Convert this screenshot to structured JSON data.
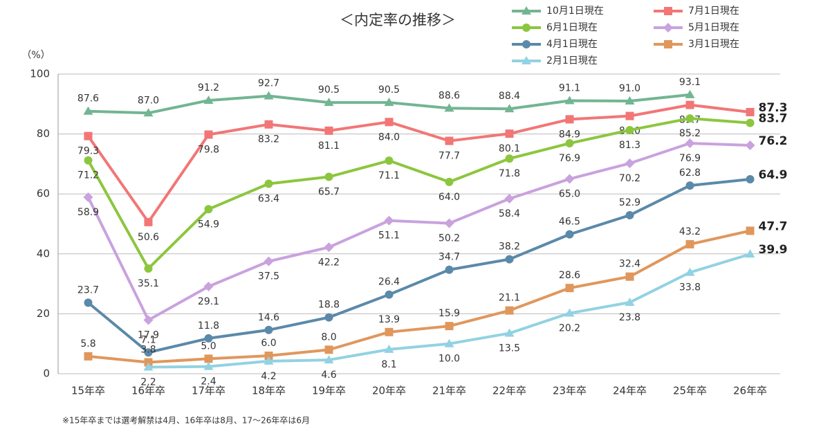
{
  "chart_data": {
    "type": "line",
    "title": "＜内定率の推移＞",
    "y_label": "（%）",
    "footnote": "※15年卒までは選考解禁は4月、16年卒は8月、17～26年卒は6月",
    "categories": [
      "15年卒",
      "16年卒",
      "17年卒",
      "18年卒",
      "19年卒",
      "20年卒",
      "21年卒",
      "22年卒",
      "23年卒",
      "24年卒",
      "25年卒",
      "26年卒"
    ],
    "ylim": [
      0,
      100
    ],
    "yticks": [
      0,
      20,
      40,
      60,
      80,
      100
    ],
    "grid": true,
    "series": [
      {
        "name": "10月1日現在",
        "color": "#72b592",
        "marker": "triangle",
        "values": [
          87.6,
          87.0,
          91.2,
          92.7,
          90.5,
          90.5,
          88.6,
          88.4,
          91.1,
          91.0,
          93.1,
          null
        ],
        "value_labels": [
          "87.6",
          "87.0",
          "91.2",
          "92.7",
          "90.5",
          "90.5",
          "88.6",
          "88.4",
          "91.1",
          "91.0",
          "93.1",
          null
        ]
      },
      {
        "name": "7月1日現在",
        "color": "#f27676",
        "marker": "square",
        "values": [
          79.3,
          50.6,
          79.8,
          83.2,
          81.1,
          84.0,
          77.7,
          80.1,
          84.9,
          86.0,
          89.7,
          87.3
        ],
        "value_labels": [
          "79.3",
          "50.6",
          "79.8",
          "83.2",
          "81.1",
          "84.0",
          "77.7",
          "80.1",
          "84.9",
          "86.0",
          "89.7",
          "87.3"
        ]
      },
      {
        "name": "6月1日現在",
        "color": "#8cc63f",
        "marker": "circle",
        "values": [
          71.2,
          35.1,
          54.9,
          63.4,
          65.7,
          71.1,
          64.0,
          71.8,
          76.9,
          81.3,
          85.2,
          83.7
        ],
        "value_labels": [
          "71.2",
          "35.1",
          "54.9",
          "63.4",
          "65.7",
          "71.1",
          "64.0",
          "71.8",
          "76.9",
          "81.3",
          "85.2",
          "83.7"
        ]
      },
      {
        "name": "5月1日現在",
        "color": "#c9a2de",
        "marker": "diamond",
        "values": [
          58.9,
          17.9,
          29.1,
          37.5,
          42.2,
          51.1,
          50.2,
          58.4,
          65.0,
          70.2,
          76.9,
          76.2
        ],
        "value_labels": [
          "58.9",
          "17.9",
          "29.1",
          "37.5",
          "42.2",
          "51.1",
          "50.2",
          "58.4",
          "65.0",
          "70.2",
          "76.9",
          "76.2"
        ]
      },
      {
        "name": "4月1日現在",
        "color": "#5b89a9",
        "marker": "circle",
        "values": [
          23.7,
          7.1,
          11.8,
          14.6,
          18.8,
          26.4,
          34.7,
          38.2,
          46.5,
          52.9,
          62.8,
          64.9
        ],
        "value_labels": [
          "23.7",
          "7.1",
          "11.8",
          "14.6",
          "18.8",
          "26.4",
          "34.7",
          "38.2",
          "46.5",
          "52.9",
          "62.8",
          "64.9"
        ]
      },
      {
        "name": "3月1日現在",
        "color": "#e0975c",
        "marker": "square",
        "values": [
          5.8,
          3.8,
          5.0,
          6.0,
          8.0,
          13.9,
          15.9,
          21.1,
          28.6,
          32.4,
          43.2,
          47.7
        ],
        "value_labels": [
          "5.8",
          "3.8",
          "5.0",
          "6.0",
          "8.0",
          "13.9",
          "15.9",
          "21.1",
          "28.6",
          "32.4",
          "43.2",
          "47.7"
        ]
      },
      {
        "name": "2月1日現在",
        "color": "#92d2e2",
        "marker": "triangle",
        "values": [
          null,
          2.2,
          2.4,
          4.2,
          4.6,
          8.1,
          10.0,
          13.5,
          20.2,
          23.8,
          33.8,
          39.9
        ],
        "value_labels": [
          null,
          "2.2",
          "2.4",
          "4.2",
          "4.6",
          "8.1",
          "10.0",
          "13.5",
          "20.2",
          "23.8",
          "33.8",
          "39.9"
        ]
      }
    ]
  }
}
